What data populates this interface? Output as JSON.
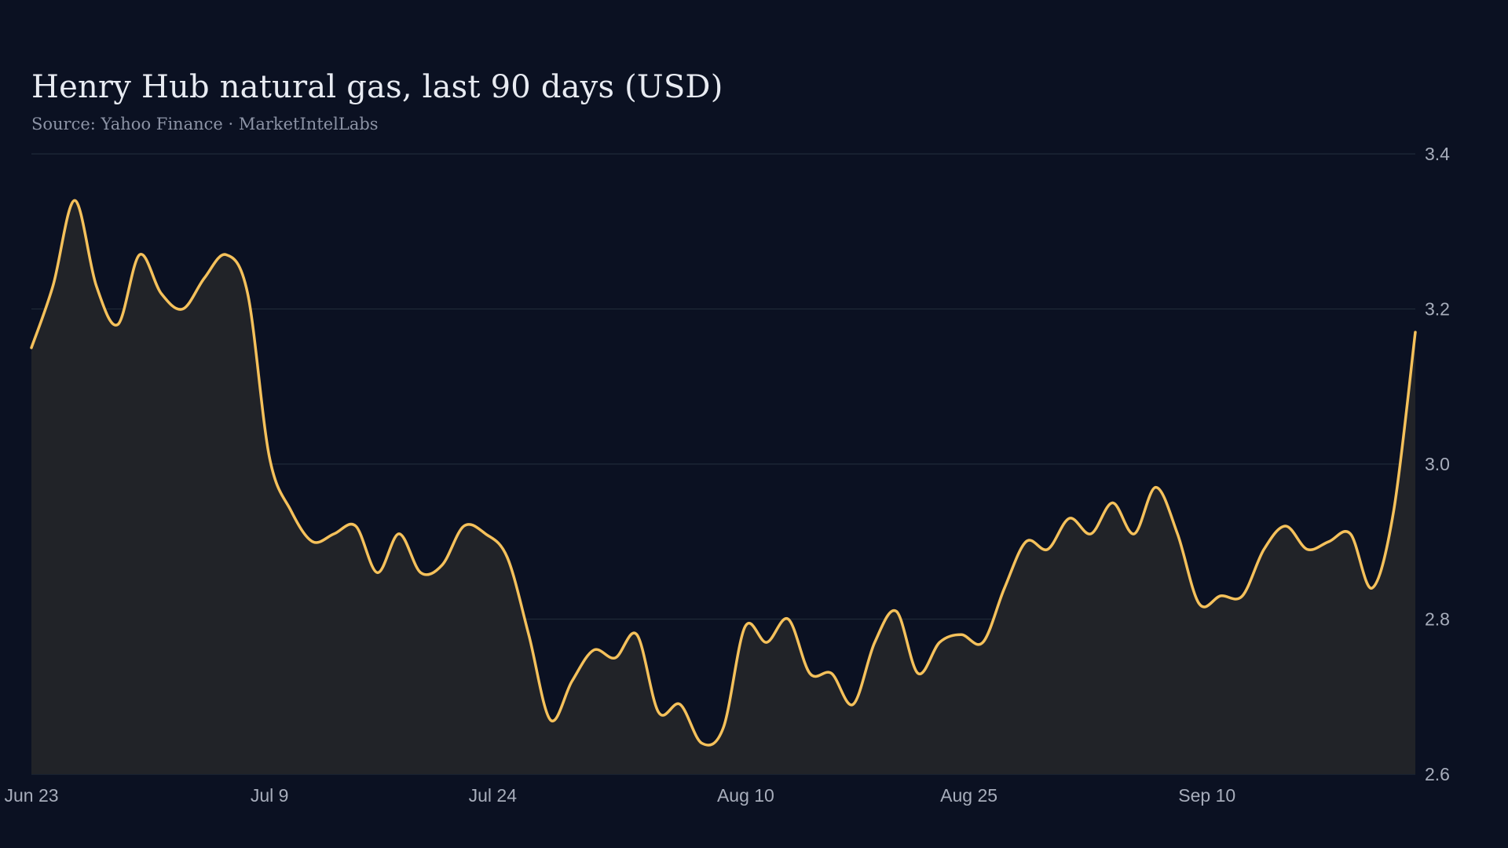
{
  "chart_data": {
    "type": "area",
    "title": "Henry Hub natural gas, last 90 days (USD)",
    "subtitle": "Source: Yahoo Finance · MarketIntelLabs",
    "xlabel": "",
    "ylabel": "",
    "ylim": [
      2.6,
      3.4
    ],
    "y_ticks": [
      "3.4",
      "3.2",
      "3.0",
      "2.8",
      "2.6"
    ],
    "y_axis_side": "right",
    "grid": true,
    "x_ticks": [
      {
        "label": "Jun 23",
        "day": 0
      },
      {
        "label": "Jul  9",
        "day": 16
      },
      {
        "label": "Jul 24",
        "day": 31
      },
      {
        "label": "Aug 10",
        "day": 48
      },
      {
        "label": "Aug 25",
        "day": 63
      },
      {
        "label": "Sep 10",
        "day": 79
      }
    ],
    "x_range": [
      0,
      93
    ],
    "line_color": "#f5c15b",
    "fill_color": "#212328",
    "background": "#0b1122",
    "series": [
      {
        "values": [
          3.15,
          3.23,
          3.34,
          3.23,
          3.18,
          3.27,
          3.22,
          3.2,
          3.24,
          3.27,
          3.22,
          3.01,
          2.94,
          2.9,
          2.91,
          2.92,
          2.86,
          2.91,
          2.86,
          2.87,
          2.92,
          2.91,
          2.88,
          2.78,
          2.67,
          2.72,
          2.76,
          2.75,
          2.78,
          2.68,
          2.69,
          2.64,
          2.66,
          2.79,
          2.77,
          2.8,
          2.73,
          2.73,
          2.69,
          2.77,
          2.81,
          2.73,
          2.77,
          2.78,
          2.77,
          2.84,
          2.9,
          2.89,
          2.93,
          2.91,
          2.95,
          2.91,
          2.97,
          2.91,
          2.82,
          2.83,
          2.83,
          2.89,
          2.92,
          2.89,
          2.9,
          2.91,
          2.84,
          2.94,
          3.17
        ]
      }
    ]
  }
}
